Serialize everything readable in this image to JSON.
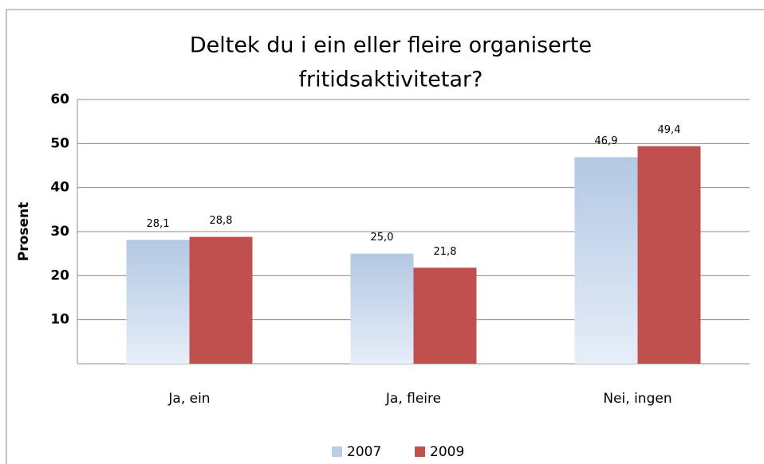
{
  "chart_data": {
    "type": "bar",
    "title": [
      "Deltek du i ein eller fleire organiserte",
      "fritidsaktivitetar?"
    ],
    "ylabel": "Prosent",
    "categories": [
      "Ja, ein",
      "Ja, fleire",
      "Nei, ingen"
    ],
    "series": [
      {
        "name": "2007",
        "color": "#b9cde5",
        "values": [
          28.1,
          25.0,
          46.9
        ],
        "value_labels": [
          "28,1",
          "25,0",
          "46,9"
        ]
      },
      {
        "name": "2009",
        "color": "#c0504d",
        "values": [
          28.8,
          21.8,
          49.4
        ],
        "value_labels": [
          "28,8",
          "21,8",
          "49,4"
        ]
      }
    ],
    "ylim": [
      0,
      60
    ],
    "yticks": [
      10,
      20,
      30,
      40,
      50,
      60
    ],
    "grid": true
  }
}
